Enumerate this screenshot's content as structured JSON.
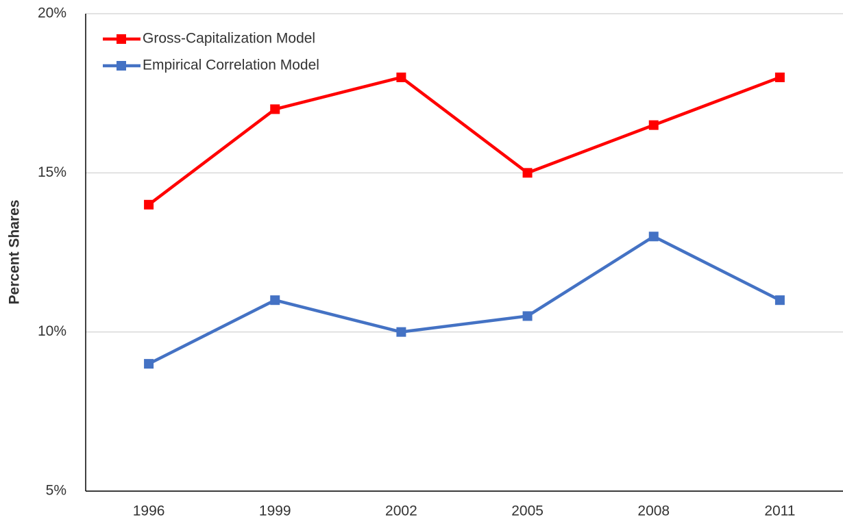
{
  "chart_data": {
    "type": "line",
    "y_label": "Percent Shares",
    "categories": [
      "1996",
      "1999",
      "2002",
      "2005",
      "2008",
      "2011"
    ],
    "series": [
      {
        "name": "Gross-Capitalization Model",
        "color": "#ff0000",
        "values": [
          14,
          17,
          18,
          15,
          16.5,
          18
        ]
      },
      {
        "name": "Empirical Correlation Model",
        "color": "#4472c4",
        "values": [
          9,
          11,
          10,
          10.5,
          13,
          11
        ]
      }
    ],
    "ylim": [
      5,
      20
    ],
    "yticks": [
      {
        "value": 5,
        "label": "5%"
      },
      {
        "value": 10,
        "label": "10%"
      },
      {
        "value": 15,
        "label": "15%"
      },
      {
        "value": 20,
        "label": "20%"
      }
    ],
    "grid": true,
    "legend": "upper left"
  }
}
